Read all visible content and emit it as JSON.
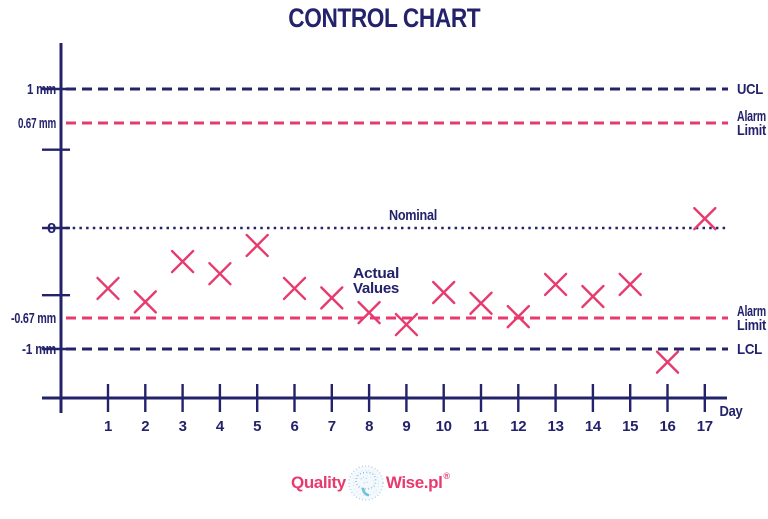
{
  "colors": {
    "navy": "#23226b",
    "pink": "#e73a6e",
    "logo_blue": "#a5c9e4",
    "logo_blue_dark": "#7fb2d9",
    "logo_teal": "#6fc2d8"
  },
  "chart_data": {
    "type": "scatter",
    "title": "CONTROL CHART",
    "xlabel": "Day",
    "unit": "mm",
    "marker": "x",
    "grid": false,
    "legend_position": "none",
    "x": [
      1,
      2,
      3,
      4,
      5,
      6,
      7,
      8,
      9,
      10,
      11,
      12,
      13,
      14,
      15,
      16,
      17
    ],
    "values": [
      -0.45,
      -0.55,
      -0.25,
      -0.34,
      -0.13,
      -0.45,
      -0.52,
      -0.63,
      -0.74,
      -0.48,
      -0.56,
      -0.66,
      -0.42,
      -0.51,
      -0.42,
      -1.14,
      0.06
    ],
    "series_label": "Actual Values",
    "yticks": [
      1,
      0.5,
      0,
      -0.5,
      -1
    ],
    "ylim": [
      -1.3,
      1.3
    ],
    "reference_lines": [
      {
        "id": "ucl",
        "value": 1,
        "left_label": "1 mm",
        "right_label": [
          "UCL"
        ],
        "style": "dashed",
        "color": "navy"
      },
      {
        "id": "upper-alarm",
        "value": 0.67,
        "left_label": "0.67 mm",
        "right_label": [
          "Alarm",
          "Limit"
        ],
        "style": "dashed",
        "color": "pink"
      },
      {
        "id": "nominal",
        "value": 0,
        "left_label": "0",
        "right_label": [],
        "style": "dotted",
        "color": "navy"
      },
      {
        "id": "lower-alarm",
        "value": -0.67,
        "left_label": "-0.67 mm",
        "right_label": [
          "Alarm",
          "Limit"
        ],
        "style": "dashed",
        "color": "pink"
      },
      {
        "id": "lcl",
        "value": -1,
        "left_label": "-1 mm",
        "right_label": [
          "LCL"
        ],
        "style": "dashed",
        "color": "navy"
      }
    ],
    "annotations": [
      {
        "id": "nominal-label",
        "lines": [
          "Nominal"
        ]
      },
      {
        "id": "actual-values-label",
        "lines": [
          "Actual",
          "Values"
        ]
      }
    ]
  },
  "logo": {
    "part1": "Quality",
    "part2": "Wise.pl",
    "registered": "®"
  }
}
